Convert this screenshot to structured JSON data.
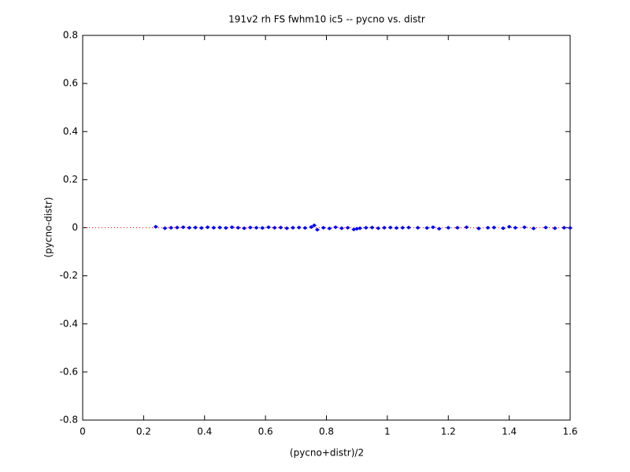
{
  "chart_data": {
    "type": "scatter",
    "title": "191v2 rh FS fwhm10 ic5 -- pycno vs. distr",
    "x_label": "(pycno+distr)/2",
    "y_label": "(pycno-distr)",
    "xlim": [
      0,
      1.6
    ],
    "ylim": [
      -0.8,
      0.8
    ],
    "xticks": [
      0,
      0.2,
      0.4,
      0.6,
      0.8,
      1,
      1.2,
      1.4,
      1.6
    ],
    "yticks": [
      -0.8,
      -0.6,
      -0.4,
      -0.2,
      0,
      0.2,
      0.4,
      0.6,
      0.8
    ],
    "grid": false,
    "reference_line": {
      "y": 0,
      "color": "#ff0000",
      "style": "dotted"
    },
    "series": [
      {
        "color": "#0000ff",
        "x": [
          0.24,
          0.27,
          0.29,
          0.31,
          0.33,
          0.35,
          0.37,
          0.39,
          0.41,
          0.43,
          0.45,
          0.47,
          0.49,
          0.51,
          0.53,
          0.55,
          0.57,
          0.59,
          0.61,
          0.63,
          0.65,
          0.67,
          0.69,
          0.71,
          0.73,
          0.75,
          0.76,
          0.77,
          0.79,
          0.81,
          0.83,
          0.85,
          0.87,
          0.89,
          0.9,
          0.91,
          0.93,
          0.95,
          0.97,
          0.99,
          1.01,
          1.03,
          1.05,
          1.07,
          1.1,
          1.13,
          1.15,
          1.17,
          1.2,
          1.23,
          1.26,
          1.3,
          1.33,
          1.35,
          1.38,
          1.4,
          1.42,
          1.45,
          1.48,
          1.52,
          1.55,
          1.58,
          1.6
        ],
        "values": [
          0.004,
          -0.002,
          0,
          0.001,
          0.002,
          0,
          0.001,
          -0.001,
          0.002,
          0,
          0.001,
          -0.001,
          0.002,
          0,
          -0.002,
          0.001,
          0,
          -0.001,
          0.002,
          0,
          0.001,
          -0.002,
          0,
          0.001,
          -0.001,
          0.003,
          0.01,
          -0.008,
          0,
          -0.003,
          0.002,
          -0.002,
          0,
          -0.007,
          -0.004,
          -0.002,
          0,
          0.001,
          -0.002,
          0,
          0.001,
          -0.001,
          0,
          0.001,
          0,
          -0.001,
          0.002,
          -0.004,
          0,
          0,
          0.002,
          -0.003,
          0,
          0.001,
          -0.002,
          0.004,
          0,
          0.002,
          -0.003,
          0.001,
          -0.002,
          0,
          -0.001
        ]
      }
    ]
  }
}
